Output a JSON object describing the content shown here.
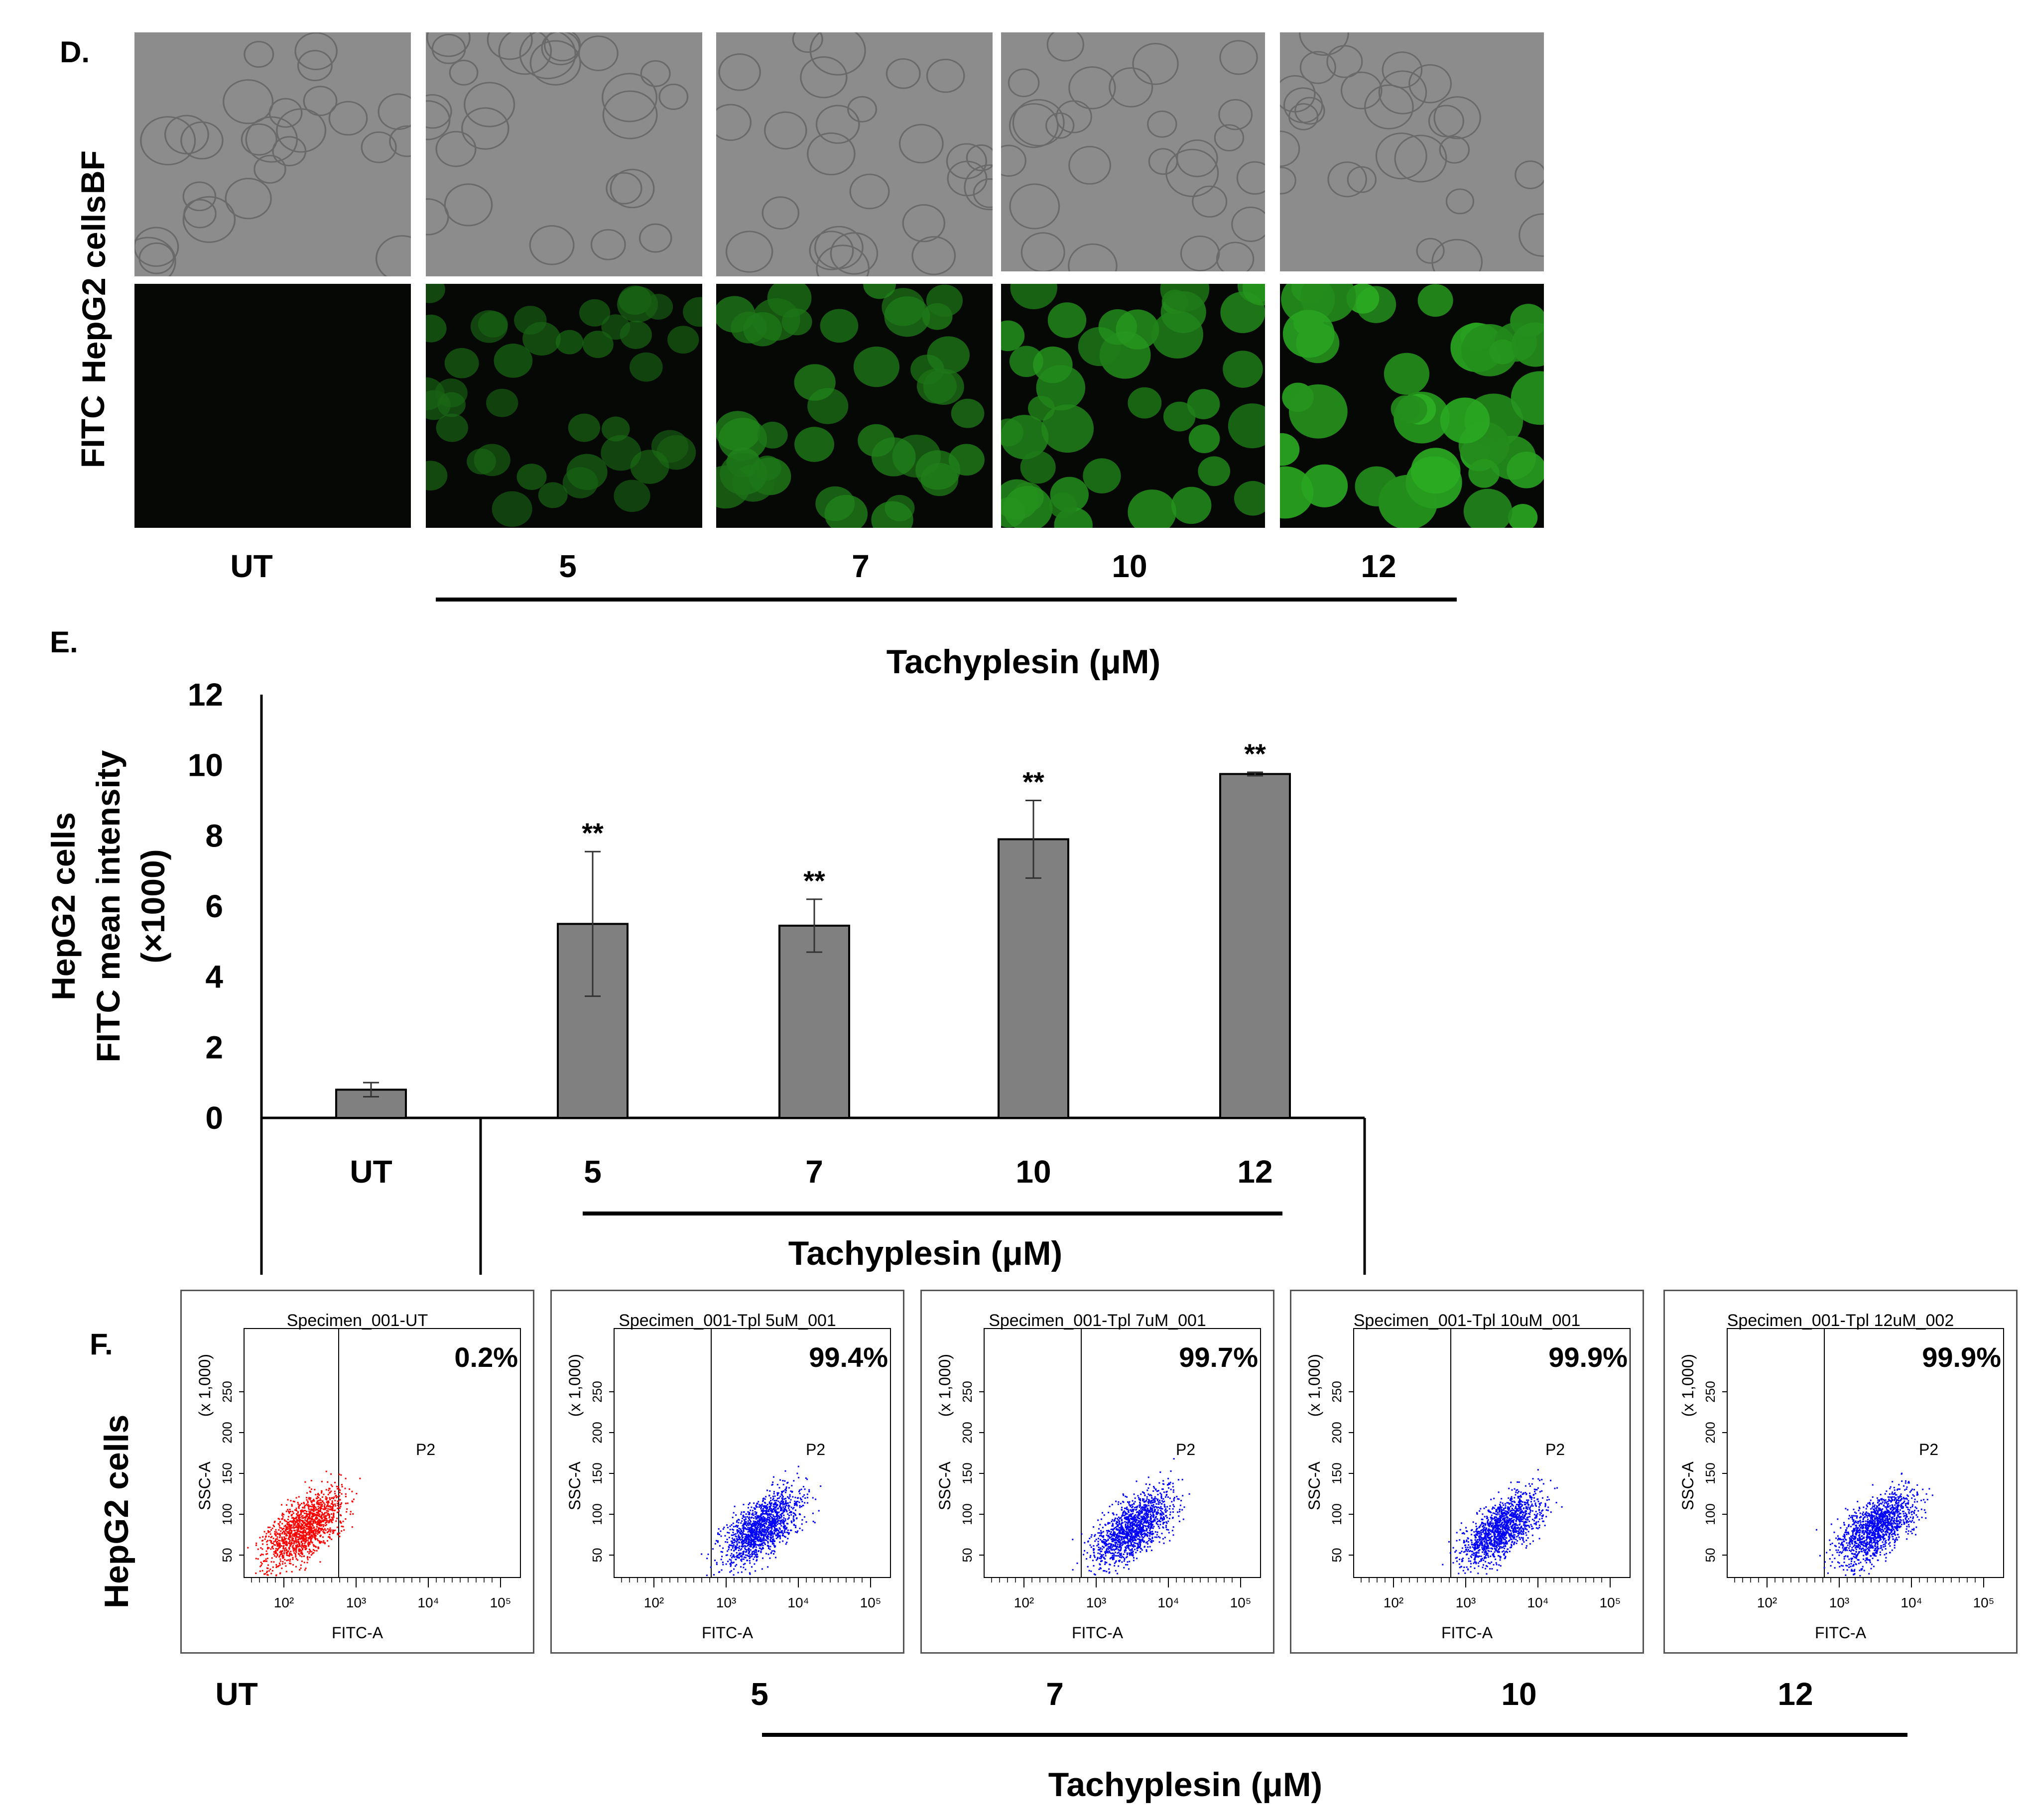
{
  "panel_d": {
    "letter": "D.",
    "cell_label": "HepG2 cells",
    "row_labels": [
      "BF",
      "FITC"
    ],
    "columns": [
      "UT",
      "5",
      "7",
      "10",
      "12"
    ],
    "axis_title": "Tachyplesin (μM)"
  },
  "panel_e": {
    "letter": "E."
  },
  "panel_f": {
    "letter": "F.",
    "cell_label": "HepG2 cells",
    "plots": [
      {
        "title": "Specimen_001-UT",
        "percent": "0.2%",
        "gate": "P2",
        "dot_color": "#ff0000"
      },
      {
        "title": "Specimen_001-Tpl 5uM_001",
        "percent": "99.4%",
        "gate": "P2",
        "dot_color": "#0000ff"
      },
      {
        "title": "Specimen_001-Tpl 7uM_001",
        "percent": "99.7%",
        "gate": "P2",
        "dot_color": "#0000ff"
      },
      {
        "title": "Specimen_001-Tpl 10uM_001",
        "percent": "99.9%",
        "gate": "P2",
        "dot_color": "#0000ff"
      },
      {
        "title": "Specimen_001-Tpl 12uM_002",
        "percent": "99.9%",
        "gate": "P2",
        "dot_color": "#0000ff"
      }
    ],
    "x_axis_label": "FITC-A",
    "y_axis_label": "SSC-A",
    "y_axis_scale_label": "(x 1,000)",
    "y_ticks": [
      "50",
      "100",
      "150",
      "200",
      "250"
    ],
    "x_ticks": [
      "10²",
      "10³",
      "10⁴",
      "10⁵"
    ],
    "columns": [
      "UT",
      "5",
      "7",
      "10",
      "12"
    ],
    "axis_title": "Tachyplesin (μM)"
  },
  "chart_data": {
    "type": "bar",
    "ylabel_lines": [
      "HepG2 cells",
      "FITC mean intensity",
      "(×1000)"
    ],
    "xlabel": "Tachyplesin (μM)",
    "categories": [
      "UT",
      "5",
      "7",
      "10",
      "12"
    ],
    "values": [
      0.8,
      5.5,
      5.45,
      7.9,
      9.75
    ],
    "errors": [
      0.2,
      2.05,
      0.75,
      1.1,
      0.05
    ],
    "significance": [
      "",
      "**",
      "**",
      "**",
      "**"
    ],
    "ylim": [
      0,
      12
    ],
    "yticks": [
      "0",
      "2",
      "4",
      "6",
      "8",
      "10",
      "12"
    ],
    "bar_color": "#808080"
  }
}
